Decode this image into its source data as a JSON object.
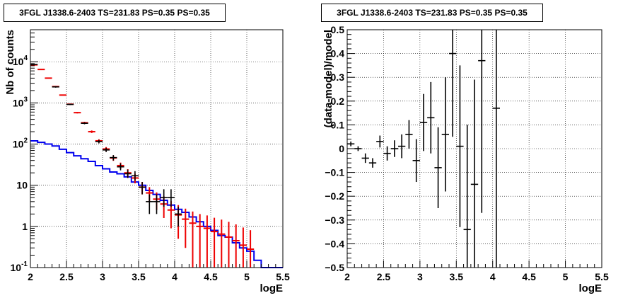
{
  "chart_data": [
    {
      "type": "line",
      "title": "3FGL J1338.6-2403 TS=231.83 PS=0.35 PS=0.35",
      "xlabel": "logE",
      "ylabel": "Nb of counts",
      "xlim": [
        2,
        5.5
      ],
      "ylim": [
        0.1,
        60000
      ],
      "ylog": true,
      "grid": true,
      "x_ticks": [
        "2",
        "2.5",
        "3",
        "3.5",
        "4",
        "4.5",
        "5",
        "5.5"
      ],
      "y_ticks": [
        {
          "value": 0.1,
          "label": "10",
          "sup": "-1"
        },
        {
          "value": 1,
          "label": "1",
          "sup": ""
        },
        {
          "value": 10,
          "label": "10",
          "sup": ""
        },
        {
          "value": 100,
          "label": "10",
          "sup": "2"
        },
        {
          "value": 1000,
          "label": "10",
          "sup": "3"
        },
        {
          "value": 10000,
          "label": "10",
          "sup": "4"
        }
      ],
      "series": [
        {
          "kind": "data",
          "color": "#000000",
          "bin_half_width": 0.05,
          "points": [
            {
              "x": 2.05,
              "y": 8600,
              "ylo": 8420,
              "yhi": 8790
            },
            {
              "x": 2.35,
              "y": 2450,
              "ylo": 2350,
              "yhi": 2550
            },
            {
              "x": 2.55,
              "y": 920,
              "ylo": 890,
              "yhi": 950
            },
            {
              "x": 2.75,
              "y": 320,
              "ylo": 303,
              "yhi": 338
            },
            {
              "x": 2.95,
              "y": 115,
              "ylo": 104,
              "yhi": 126
            },
            {
              "x": 3.05,
              "y": 72,
              "ylo": 64,
              "yhi": 81
            },
            {
              "x": 3.15,
              "y": 47,
              "ylo": 40,
              "yhi": 54
            },
            {
              "x": 3.25,
              "y": 28,
              "ylo": 23,
              "yhi": 34
            },
            {
              "x": 3.35,
              "y": 19,
              "ylo": 15,
              "yhi": 24
            },
            {
              "x": 3.45,
              "y": 17,
              "ylo": 13,
              "yhi": 22
            },
            {
              "x": 3.55,
              "y": 9,
              "ylo": 6,
              "yhi": 12
            },
            {
              "x": 3.65,
              "y": 4,
              "ylo": 2,
              "yhi": 6
            },
            {
              "x": 3.75,
              "y": 4,
              "ylo": 2,
              "yhi": 6
            },
            {
              "x": 3.85,
              "y": 5,
              "ylo": 3,
              "yhi": 8
            },
            {
              "x": 3.95,
              "y": 5,
              "ylo": 3,
              "yhi": 8
            },
            {
              "x": 4.05,
              "y": 2,
              "ylo": 1,
              "yhi": 3
            }
          ]
        },
        {
          "kind": "model",
          "color": "#ee0000",
          "bin_half_width": 0.05,
          "points": [
            {
              "x": 2.05,
              "y": 8400,
              "err": 92
            },
            {
              "x": 2.15,
              "y": 6500,
              "err": 81
            },
            {
              "x": 2.25,
              "y": 4000,
              "err": 63
            },
            {
              "x": 2.35,
              "y": 2500,
              "err": 50
            },
            {
              "x": 2.45,
              "y": 1550,
              "err": 39
            },
            {
              "x": 2.55,
              "y": 930,
              "err": 30
            },
            {
              "x": 2.65,
              "y": 580,
              "err": 24
            },
            {
              "x": 2.75,
              "y": 330,
              "err": 18
            },
            {
              "x": 2.85,
              "y": 200,
              "err": 14
            },
            {
              "x": 2.95,
              "y": 120,
              "err": 11
            },
            {
              "x": 3.05,
              "y": 76,
              "err": 8.7
            },
            {
              "x": 3.15,
              "y": 46,
              "err": 6.8
            },
            {
              "x": 3.25,
              "y": 30,
              "err": 5.5
            },
            {
              "x": 3.35,
              "y": 20,
              "err": 4.5
            },
            {
              "x": 3.45,
              "y": 15,
              "err": 3.9
            },
            {
              "x": 3.55,
              "y": 9,
              "err": 3
            },
            {
              "x": 3.65,
              "y": 6.5,
              "err": 2.5
            },
            {
              "x": 3.75,
              "y": 4.6,
              "err": 2.1
            },
            {
              "x": 3.85,
              "y": 3.5,
              "err": 1.9
            },
            {
              "x": 3.95,
              "y": 2.5,
              "err": 1.6
            },
            {
              "x": 4.05,
              "y": 1.9,
              "err": 1.4
            },
            {
              "x": 4.15,
              "y": 1.5,
              "err": 1.2
            },
            {
              "x": 4.25,
              "y": 1.2,
              "err": 1.1
            },
            {
              "x": 4.35,
              "y": 1.0,
              "err": 1.0
            },
            {
              "x": 4.45,
              "y": 0.9,
              "err": 0.95
            },
            {
              "x": 4.55,
              "y": 0.75,
              "err": 0.87
            },
            {
              "x": 4.65,
              "y": 0.65,
              "err": 0.81
            },
            {
              "x": 4.75,
              "y": 0.55,
              "err": 0.74
            },
            {
              "x": 4.85,
              "y": 0.45,
              "err": 0.67
            },
            {
              "x": 4.95,
              "y": 0.35,
              "err": 0.59
            },
            {
              "x": 5.05,
              "y": 0.28,
              "err": 0.53
            }
          ]
        },
        {
          "kind": "background",
          "color": "#0000ee",
          "edges": [
            2.0,
            2.1,
            2.2,
            2.3,
            2.4,
            2.5,
            2.6,
            2.7,
            2.8,
            2.9,
            3.0,
            3.1,
            3.2,
            3.3,
            3.4,
            3.5,
            3.6,
            3.7,
            3.8,
            3.9,
            4.0,
            4.1,
            4.2,
            4.3,
            4.4,
            4.5,
            4.6,
            4.7,
            4.8,
            4.9,
            5.0,
            5.1,
            5.2,
            5.3,
            5.4,
            5.5
          ],
          "values": [
            120,
            110,
            100,
            90,
            75,
            62,
            52,
            44,
            38,
            30,
            25,
            21,
            19,
            16,
            12,
            10,
            7.5,
            6,
            4.3,
            3.3,
            2.6,
            2.2,
            1.7,
            1.3,
            1.0,
            0.8,
            0.6,
            0.55,
            0.4,
            0.3,
            0.25,
            0.15,
            0.1,
            0.1,
            0.1
          ]
        }
      ]
    },
    {
      "type": "scatter",
      "title": "3FGL J1338.6-2403 TS=231.83 PS=0.35 PS=0.35",
      "xlabel": "logE",
      "ylabel": "(data-model)/model",
      "xlim": [
        2,
        5.5
      ],
      "ylim": [
        -0.5,
        0.5
      ],
      "grid": true,
      "x_ticks": [
        "2",
        "2.5",
        "3",
        "3.5",
        "4",
        "4.5",
        "5",
        "5.5"
      ],
      "y_ticks": [
        "−0.5",
        "−0.4",
        "−0.3",
        "−0.2",
        "−0.1",
        "0",
        "0.1",
        "0.2",
        "0.3",
        "0.4",
        "0.5"
      ],
      "series": [
        {
          "color": "#000000",
          "bin_half_width": 0.05,
          "points": [
            {
              "x": 2.05,
              "y": 0.02,
              "err": 0.01
            },
            {
              "x": 2.15,
              "y": 0.0,
              "err": 0.01
            },
            {
              "x": 2.25,
              "y": -0.04,
              "err": 0.02
            },
            {
              "x": 2.35,
              "y": -0.06,
              "err": 0.02
            },
            {
              "x": 2.45,
              "y": 0.03,
              "err": 0.025
            },
            {
              "x": 2.55,
              "y": -0.02,
              "err": 0.03
            },
            {
              "x": 2.65,
              "y": 0.0,
              "err": 0.035
            },
            {
              "x": 2.75,
              "y": 0.01,
              "err": 0.05
            },
            {
              "x": 2.85,
              "y": 0.06,
              "err": 0.06
            },
            {
              "x": 2.95,
              "y": -0.05,
              "err": 0.09
            },
            {
              "x": 3.05,
              "y": 0.11,
              "err": 0.12
            },
            {
              "x": 3.15,
              "y": 0.13,
              "err": 0.15
            },
            {
              "x": 3.25,
              "y": -0.08,
              "err": 0.17
            },
            {
              "x": 3.35,
              "y": 0.06,
              "err": 0.24
            },
            {
              "x": 3.45,
              "y": 0.4,
              "err": 0.35
            },
            {
              "x": 3.55,
              "y": 0.01,
              "err": 0.34
            },
            {
              "x": 3.65,
              "y": -0.34,
              "err": 0.44
            },
            {
              "x": 3.75,
              "y": -0.15,
              "err": 0.44
            },
            {
              "x": 3.85,
              "y": 0.37,
              "err": 0.64
            },
            {
              "x": 4.05,
              "y": 0.17,
              "err": 1.0
            }
          ]
        }
      ]
    }
  ]
}
